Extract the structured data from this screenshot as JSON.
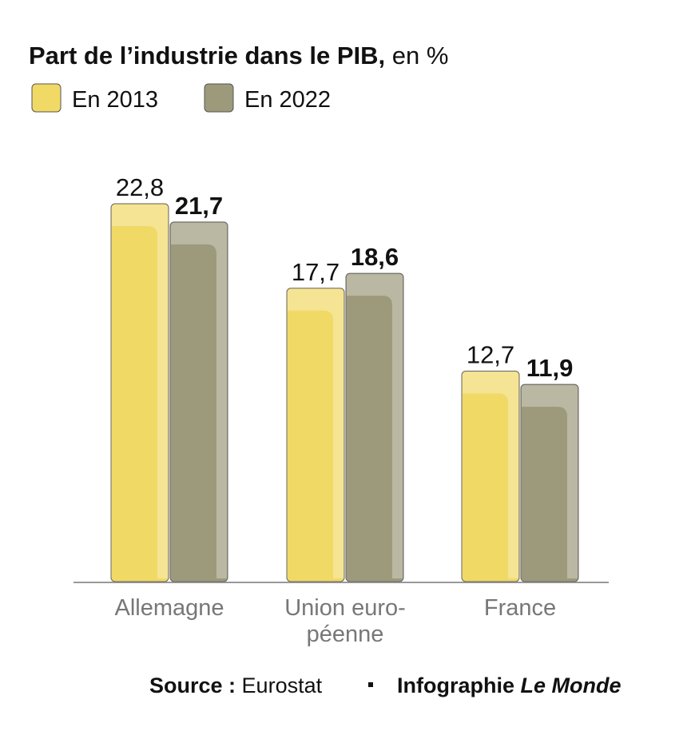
{
  "chart_data": {
    "type": "bar",
    "title": "Part de l’industrie dans le PIB,",
    "subtitle": "en %",
    "categories": [
      [
        "Allemagne"
      ],
      [
        "Union euro-",
        "péenne"
      ],
      [
        "France"
      ]
    ],
    "series": [
      {
        "name": "En 2013",
        "color": "#f1d966",
        "values": [
          22.8,
          17.7,
          12.7
        ],
        "value_labels": [
          "22,8",
          "17,7",
          "12,7"
        ]
      },
      {
        "name": "En 2022",
        "color": "#9d9a7c",
        "values": [
          21.7,
          18.6,
          11.9
        ],
        "value_labels": [
          "21,7",
          "18,6",
          "11,9"
        ]
      }
    ],
    "source": {
      "label": "Source :",
      "name": "Eurostat",
      "credit": "Infographie",
      "publisher": "Le Monde"
    }
  }
}
